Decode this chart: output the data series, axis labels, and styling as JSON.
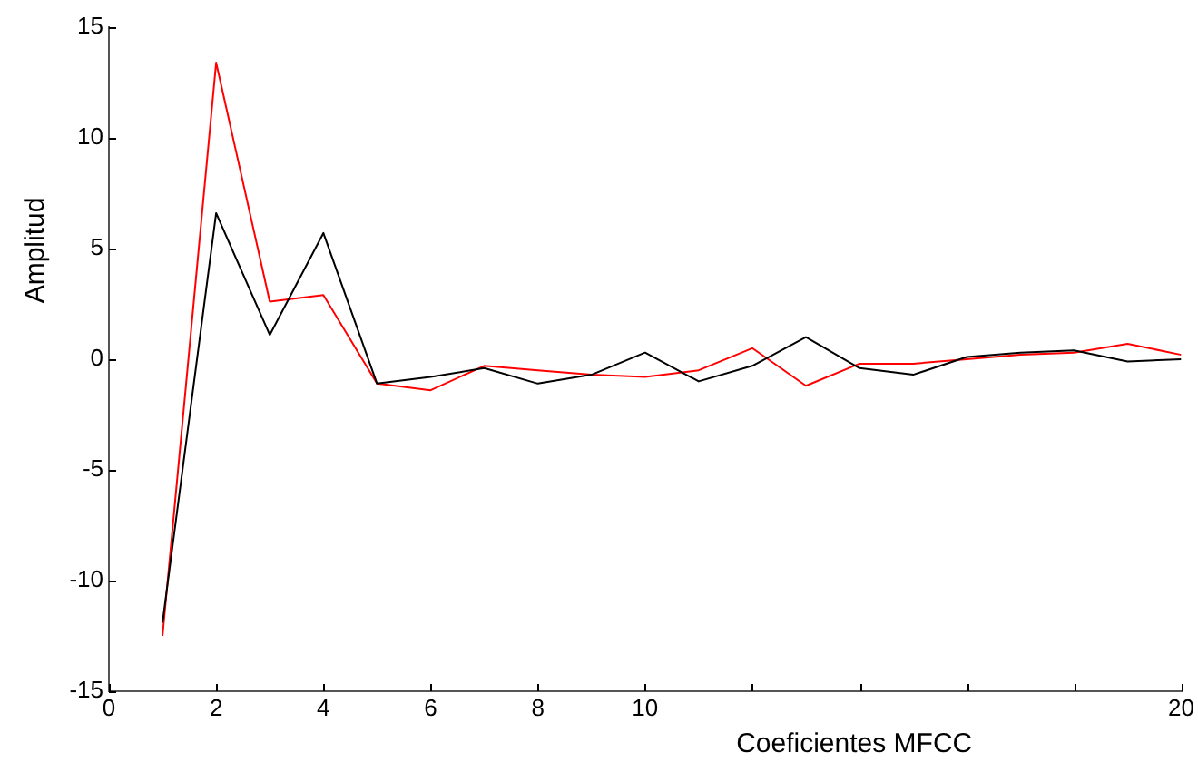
{
  "chart_data": {
    "type": "line",
    "xlabel": "Coeficientes MFCC",
    "ylabel": "Amplitud",
    "x": [
      1,
      2,
      3,
      4,
      5,
      6,
      7,
      8,
      9,
      10,
      11,
      12,
      13,
      14,
      15,
      16,
      17,
      18,
      19,
      20
    ],
    "series": [
      {
        "color": "#000000",
        "values": [
          -11.9,
          6.6,
          1.1,
          5.7,
          -1.1,
          -0.8,
          -0.4,
          -1.1,
          -0.7,
          0.3,
          -1.0,
          -0.3,
          1.0,
          -0.4,
          -0.7,
          0.1,
          0.3,
          0.4,
          -0.1,
          0.0
        ]
      },
      {
        "color": "#ff0000",
        "values": [
          -12.5,
          13.4,
          2.6,
          2.9,
          -1.1,
          -1.4,
          -0.3,
          -0.5,
          -0.7,
          -0.8,
          -0.5,
          0.5,
          -1.2,
          -0.2,
          -0.2,
          0.0,
          0.2,
          0.3,
          0.7,
          0.2
        ]
      }
    ],
    "xlim": [
      0,
      20
    ],
    "xticks": [
      0,
      2,
      4,
      6,
      8,
      10,
      {
        "value": 12,
        "label": null
      },
      {
        "value": 14,
        "label": null
      },
      {
        "value": 16,
        "label": null
      },
      {
        "value": 18,
        "label": null
      },
      20
    ],
    "ylim": [
      -15,
      15
    ],
    "yticks": [
      -15,
      -10,
      -5,
      {
        "value": 0,
        "label": "0"
      },
      {
        "value": 5,
        "label": "5"
      },
      10,
      15
    ],
    "grid": false,
    "legend": false,
    "marker": "none",
    "line_style": "solid"
  }
}
